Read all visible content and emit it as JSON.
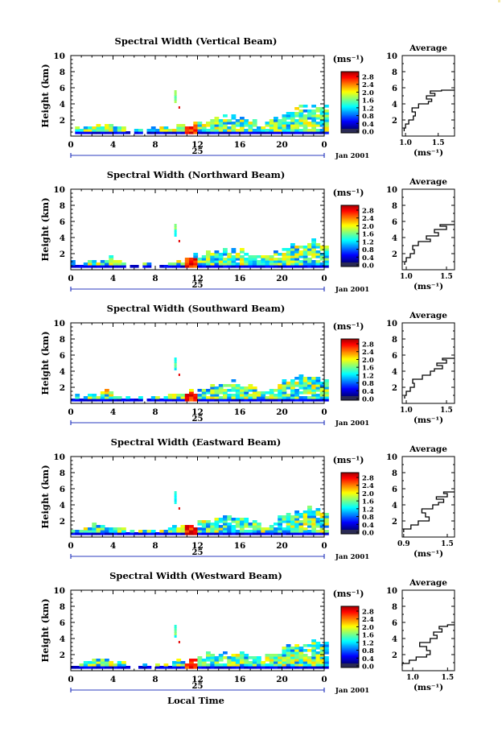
{
  "chart_data": [
    {
      "type": "heatmap",
      "title": "Spectral Width (Vertical Beam)",
      "ylabel": "Height (km)",
      "xlim": [
        0,
        24
      ],
      "ylim": [
        0,
        10
      ],
      "x_ticks": [
        "0",
        "4",
        "8",
        "12",
        "16",
        "20",
        "0"
      ],
      "y_ticks": [
        "10",
        "8",
        "6",
        "4",
        "2"
      ],
      "date_day": "25",
      "date_label": "Jan 2001",
      "colorbar": {
        "unit": "(ms⁻¹)",
        "ticks": [
          "2.8",
          "2.4",
          "2.0",
          "1.6",
          "1.2",
          "0.8",
          "0.4",
          "0.0"
        ]
      },
      "average": {
        "title": "Average",
        "xlabel": "(ms⁻¹)",
        "x_ticks": [
          "1.0",
          "1.5"
        ],
        "y_ticks": [
          "10",
          "8",
          "6",
          "4",
          "2"
        ],
        "xlim": [
          0.95,
          1.75
        ],
        "ylim": [
          0,
          10
        ],
        "profile": [
          [
            0.98,
            0.6
          ],
          [
            1.0,
            1.0
          ],
          [
            1.05,
            1.5
          ],
          [
            1.12,
            2.0
          ],
          [
            1.15,
            2.5
          ],
          [
            1.1,
            3.0
          ],
          [
            1.2,
            3.5
          ],
          [
            1.35,
            4.0
          ],
          [
            1.4,
            4.3
          ],
          [
            1.32,
            4.6
          ],
          [
            1.45,
            5.0
          ],
          [
            1.38,
            5.3
          ],
          [
            1.55,
            5.6
          ],
          [
            1.75,
            5.7
          ]
        ]
      },
      "echo_height_profile": [
        [
          0,
          0.6
        ],
        [
          1,
          0.8
        ],
        [
          2,
          1.2
        ],
        [
          3,
          1.6
        ],
        [
          4,
          1.2
        ],
        [
          5,
          0.8
        ],
        [
          6,
          0.6
        ],
        [
          7,
          0.5
        ],
        [
          8,
          0.6
        ],
        [
          9,
          0.8
        ],
        [
          10,
          1.0
        ],
        [
          11,
          1.3
        ],
        [
          12,
          1.6
        ],
        [
          13,
          2.0
        ],
        [
          14,
          2.2
        ],
        [
          15,
          2.4
        ],
        [
          16,
          2.2
        ],
        [
          17,
          1.8
        ],
        [
          18,
          1.4
        ],
        [
          19,
          1.8
        ],
        [
          20,
          2.8
        ],
        [
          21,
          3.4
        ],
        [
          22,
          3.8
        ],
        [
          23,
          3.6
        ],
        [
          24,
          3.4
        ]
      ]
    },
    {
      "type": "heatmap",
      "title": "Spectral Width (Northward Beam)",
      "ylabel": "Height (km)",
      "xlim": [
        0,
        24
      ],
      "ylim": [
        0,
        10
      ],
      "x_ticks": [
        "0",
        "4",
        "8",
        "12",
        "16",
        "20",
        "0"
      ],
      "y_ticks": [
        "10",
        "8",
        "6",
        "4",
        "2"
      ],
      "date_day": "25",
      "date_label": "Jan 2001",
      "colorbar": {
        "unit": "(ms⁻¹)",
        "ticks": [
          "2.8",
          "2.4",
          "2.0",
          "1.6",
          "1.2",
          "0.8",
          "0.4",
          "0.0"
        ]
      },
      "average": {
        "title": "Average",
        "xlabel": "(ms⁻¹)",
        "x_ticks": [
          "1.0",
          "1.5"
        ],
        "y_ticks": [
          "10",
          "8",
          "6",
          "4",
          "2"
        ],
        "xlim": [
          0.95,
          1.6
        ],
        "ylim": [
          0,
          10
        ],
        "profile": [
          [
            0.98,
            0.6
          ],
          [
            1.0,
            1.0
          ],
          [
            1.05,
            1.5
          ],
          [
            1.1,
            2.0
          ],
          [
            1.08,
            2.5
          ],
          [
            1.15,
            3.0
          ],
          [
            1.3,
            3.5
          ],
          [
            1.25,
            3.8
          ],
          [
            1.4,
            4.2
          ],
          [
            1.35,
            4.6
          ],
          [
            1.5,
            5.0
          ],
          [
            1.42,
            5.4
          ],
          [
            1.6,
            5.6
          ]
        ]
      },
      "echo_height_profile": [
        [
          0,
          0.6
        ],
        [
          1,
          0.8
        ],
        [
          2,
          1.2
        ],
        [
          3,
          1.4
        ],
        [
          4,
          1.0
        ],
        [
          5,
          0.7
        ],
        [
          6,
          0.5
        ],
        [
          7,
          0.5
        ],
        [
          8,
          0.6
        ],
        [
          9,
          0.8
        ],
        [
          10,
          1.0
        ],
        [
          11,
          1.3
        ],
        [
          12,
          1.6
        ],
        [
          13,
          2.0
        ],
        [
          14,
          2.2
        ],
        [
          15,
          2.4
        ],
        [
          16,
          2.2
        ],
        [
          17,
          1.8
        ],
        [
          18,
          1.4
        ],
        [
          19,
          1.8
        ],
        [
          20,
          2.6
        ],
        [
          21,
          3.0
        ],
        [
          22,
          3.2
        ],
        [
          23,
          3.4
        ],
        [
          24,
          3.0
        ]
      ]
    },
    {
      "type": "heatmap",
      "title": "Spectral Width (Southward Beam)",
      "ylabel": "Height (km)",
      "xlim": [
        0,
        24
      ],
      "ylim": [
        0,
        10
      ],
      "x_ticks": [
        "0",
        "4",
        "8",
        "12",
        "16",
        "20",
        "0"
      ],
      "y_ticks": [
        "10",
        "8",
        "6",
        "4",
        "2"
      ],
      "date_day": "25",
      "date_label": "Jan 2001",
      "colorbar": {
        "unit": "(ms⁻¹)",
        "ticks": [
          "2.8",
          "2.4",
          "2.0",
          "1.6",
          "1.2",
          "0.8",
          "0.4",
          "0.0"
        ]
      },
      "average": {
        "title": "Average",
        "xlabel": "(ms⁻¹)",
        "x_ticks": [
          "1.0",
          "1.5"
        ],
        "y_ticks": [
          "10",
          "8",
          "6",
          "4",
          "2"
        ],
        "xlim": [
          0.95,
          1.6
        ],
        "ylim": [
          0,
          10
        ],
        "profile": [
          [
            0.98,
            0.6
          ],
          [
            1.0,
            1.0
          ],
          [
            1.05,
            1.5
          ],
          [
            1.1,
            2.0
          ],
          [
            1.08,
            2.5
          ],
          [
            1.2,
            3.0
          ],
          [
            1.3,
            3.5
          ],
          [
            1.35,
            4.0
          ],
          [
            1.45,
            4.3
          ],
          [
            1.38,
            4.7
          ],
          [
            1.5,
            5.0
          ],
          [
            1.45,
            5.4
          ],
          [
            1.6,
            5.6
          ]
        ]
      },
      "echo_height_profile": [
        [
          0,
          0.6
        ],
        [
          1,
          0.8
        ],
        [
          2,
          1.2
        ],
        [
          3,
          1.4
        ],
        [
          4,
          1.0
        ],
        [
          5,
          0.7
        ],
        [
          6,
          0.5
        ],
        [
          7,
          0.5
        ],
        [
          8,
          0.6
        ],
        [
          9,
          0.8
        ],
        [
          10,
          1.0
        ],
        [
          11,
          1.3
        ],
        [
          12,
          1.6
        ],
        [
          13,
          2.0
        ],
        [
          14,
          2.2
        ],
        [
          15,
          2.4
        ],
        [
          16,
          2.2
        ],
        [
          17,
          1.8
        ],
        [
          18,
          1.4
        ],
        [
          19,
          1.8
        ],
        [
          20,
          2.6
        ],
        [
          21,
          3.0
        ],
        [
          22,
          3.4
        ],
        [
          23,
          3.6
        ],
        [
          24,
          3.2
        ]
      ]
    },
    {
      "type": "heatmap",
      "title": "Spectral Width (Eastward Beam)",
      "ylabel": "Height (km)",
      "xlim": [
        0,
        24
      ],
      "ylim": [
        0,
        10
      ],
      "x_ticks": [
        "0",
        "4",
        "8",
        "12",
        "16",
        "20",
        "0"
      ],
      "y_ticks": [
        "10",
        "8",
        "6",
        "4",
        "2"
      ],
      "date_day": "25",
      "date_label": "Jan 2001",
      "colorbar": {
        "unit": "(ms⁻¹)",
        "ticks": [
          "2.8",
          "2.4",
          "2.0",
          "1.6",
          "1.2",
          "0.8",
          "0.4",
          "0.0"
        ]
      },
      "average": {
        "title": "Average",
        "xlabel": "(ms⁻¹)",
        "x_ticks": [
          "0.9",
          "1.5"
        ],
        "y_ticks": [
          "10",
          "8",
          "6",
          "4",
          "2"
        ],
        "xlim": [
          0.88,
          1.6
        ],
        "ylim": [
          0,
          10
        ],
        "profile": [
          [
            0.9,
            0.6
          ],
          [
            1.0,
            1.0
          ],
          [
            1.1,
            1.5
          ],
          [
            1.25,
            2.0
          ],
          [
            1.2,
            2.5
          ],
          [
            1.15,
            3.0
          ],
          [
            1.3,
            3.5
          ],
          [
            1.38,
            4.0
          ],
          [
            1.45,
            4.3
          ],
          [
            1.35,
            4.7
          ],
          [
            1.5,
            5.0
          ],
          [
            1.45,
            5.4
          ],
          [
            1.6,
            5.6
          ]
        ]
      },
      "echo_height_profile": [
        [
          0,
          0.6
        ],
        [
          1,
          0.8
        ],
        [
          2,
          1.2
        ],
        [
          3,
          1.4
        ],
        [
          4,
          1.0
        ],
        [
          5,
          0.7
        ],
        [
          6,
          0.5
        ],
        [
          7,
          0.5
        ],
        [
          8,
          0.6
        ],
        [
          9,
          0.8
        ],
        [
          10,
          1.0
        ],
        [
          11,
          1.3
        ],
        [
          12,
          1.6
        ],
        [
          13,
          2.0
        ],
        [
          14,
          2.2
        ],
        [
          15,
          2.4
        ],
        [
          16,
          2.2
        ],
        [
          17,
          1.8
        ],
        [
          18,
          1.4
        ],
        [
          19,
          1.8
        ],
        [
          20,
          2.6
        ],
        [
          21,
          3.0
        ],
        [
          22,
          3.4
        ],
        [
          23,
          3.6
        ],
        [
          24,
          3.0
        ]
      ]
    },
    {
      "type": "heatmap",
      "title": "Spectral Width (Westward Beam)",
      "ylabel": "Height (km)",
      "xlabel": "Local Time",
      "xlim": [
        0,
        24
      ],
      "ylim": [
        0,
        10
      ],
      "x_ticks": [
        "0",
        "4",
        "8",
        "12",
        "16",
        "20",
        "0"
      ],
      "y_ticks": [
        "10",
        "8",
        "6",
        "4",
        "2"
      ],
      "date_day": "25",
      "date_label": "Jan 2001",
      "colorbar": {
        "unit": "(ms⁻¹)",
        "ticks": [
          "2.8",
          "2.4",
          "2.0",
          "1.6",
          "1.2",
          "0.8",
          "0.4",
          "0.0"
        ]
      },
      "average": {
        "title": "Average",
        "xlabel": "(ms⁻¹)",
        "x_ticks": [
          "1.0",
          "1.5"
        ],
        "y_ticks": [
          "10",
          "8",
          "6",
          "4",
          "2"
        ],
        "xlim": [
          0.85,
          1.6
        ],
        "ylim": [
          0,
          10
        ],
        "profile": [
          [
            0.85,
            0.6
          ],
          [
            0.95,
            0.9
          ],
          [
            1.05,
            1.3
          ],
          [
            1.2,
            1.7
          ],
          [
            1.25,
            2.0
          ],
          [
            1.2,
            2.5
          ],
          [
            1.1,
            3.0
          ],
          [
            1.25,
            3.5
          ],
          [
            1.35,
            4.0
          ],
          [
            1.3,
            4.4
          ],
          [
            1.42,
            4.8
          ],
          [
            1.38,
            5.2
          ],
          [
            1.5,
            5.5
          ],
          [
            1.6,
            5.7
          ]
        ]
      },
      "echo_height_profile": [
        [
          0,
          0.6
        ],
        [
          1,
          0.8
        ],
        [
          2,
          1.2
        ],
        [
          3,
          1.4
        ],
        [
          4,
          1.0
        ],
        [
          5,
          0.7
        ],
        [
          6,
          0.5
        ],
        [
          7,
          0.5
        ],
        [
          8,
          0.6
        ],
        [
          9,
          0.8
        ],
        [
          10,
          1.0
        ],
        [
          11,
          1.3
        ],
        [
          12,
          1.6
        ],
        [
          13,
          2.0
        ],
        [
          14,
          2.2
        ],
        [
          15,
          2.4
        ],
        [
          16,
          2.2
        ],
        [
          17,
          1.8
        ],
        [
          18,
          1.4
        ],
        [
          19,
          1.8
        ],
        [
          20,
          2.6
        ],
        [
          21,
          3.0
        ],
        [
          22,
          3.4
        ],
        [
          23,
          3.6
        ],
        [
          24,
          3.0
        ]
      ]
    }
  ]
}
